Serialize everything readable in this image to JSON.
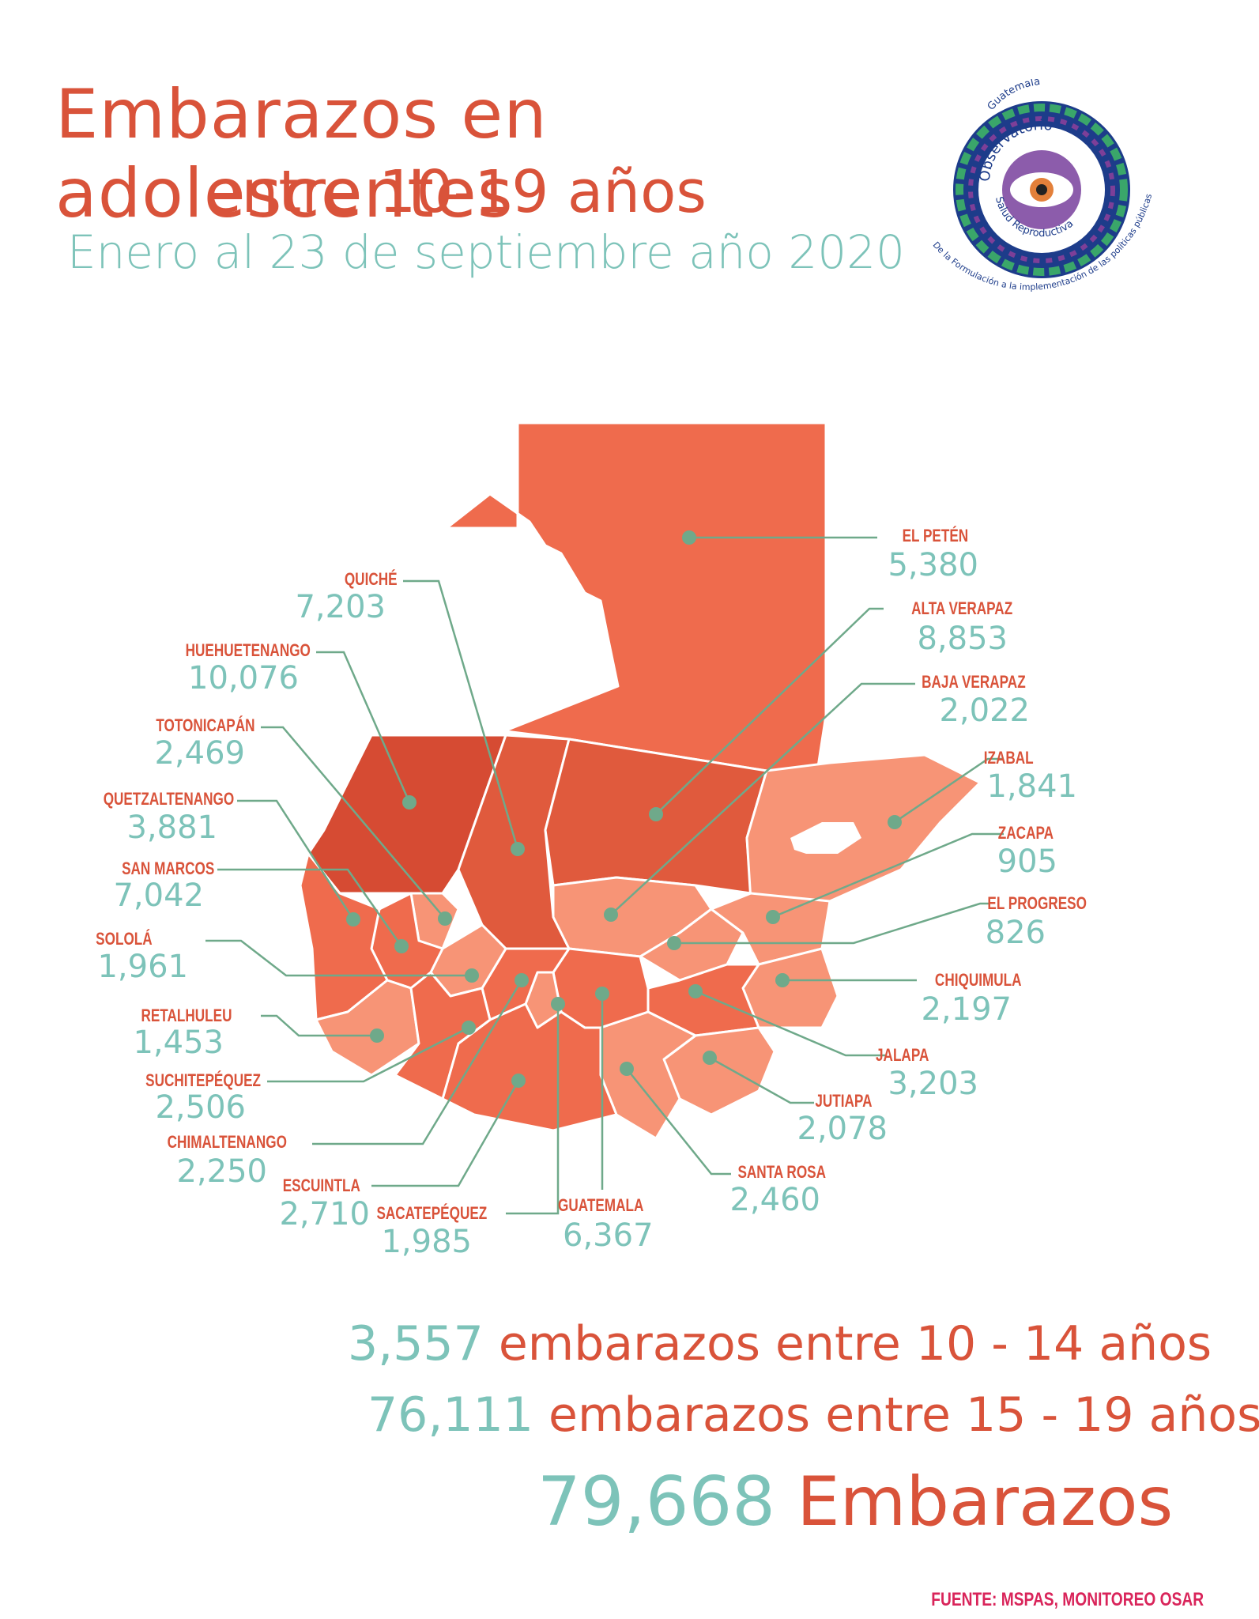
{
  "title": {
    "line1": "Embarazos en adolescentes",
    "line2": "entre 10-19 años",
    "subtitle": "Enero al 23 de septiembre año 2020"
  },
  "logo": {
    "top_text": "Guatemala",
    "ring_text_1": "Observatorio",
    "ring_text_2": "Salud Reproductiva",
    "bottom_text": "De la Formulación a la implementación de las políticas públicas"
  },
  "colors": {
    "accent": "#d9533a",
    "value": "#7dc3b9",
    "leader": "#6fa98a",
    "region_dark": "#d64b33",
    "region_mid": "#ef6b4d",
    "region_light": "#f79476",
    "source": "#d9245a"
  },
  "departments": [
    {
      "name": "EL PETÉN",
      "value": "5,380"
    },
    {
      "name": "ALTA VERAPAZ",
      "value": "8,853"
    },
    {
      "name": "BAJA VERAPAZ",
      "value": "2,022"
    },
    {
      "name": "IZABAL",
      "value": "1,841"
    },
    {
      "name": "ZACAPA",
      "value": "905"
    },
    {
      "name": "EL PROGRESO",
      "value": "826"
    },
    {
      "name": "CHIQUIMULA",
      "value": "2,197"
    },
    {
      "name": "JALAPA",
      "value": "3,203"
    },
    {
      "name": "JUTIAPA",
      "value": "2,078"
    },
    {
      "name": "SANTA ROSA",
      "value": "2,460"
    },
    {
      "name": "GUATEMALA",
      "value": "6,367"
    },
    {
      "name": "SACATEPÉQUEZ",
      "value": "1,985"
    },
    {
      "name": "ESCUINTLA",
      "value": "2,710"
    },
    {
      "name": "CHIMALTENANGO",
      "value": "2,250"
    },
    {
      "name": "SUCHITEPÉQUEZ",
      "value": "2,506"
    },
    {
      "name": "RETALHULEU",
      "value": "1,453"
    },
    {
      "name": "SOLOLÁ",
      "value": "1,961"
    },
    {
      "name": "SAN MARCOS",
      "value": "7,042"
    },
    {
      "name": "QUETZALTENANGO",
      "value": "3,881"
    },
    {
      "name": "TOTONICAPÁN",
      "value": "2,469"
    },
    {
      "name": "HUEHUETENANGO",
      "value": "10,076"
    },
    {
      "name": "QUICHÉ",
      "value": "7,203"
    }
  ],
  "summary": {
    "row1_num": "3,557",
    "row1_text": "embarazos entre 10 - 14 años",
    "row2_num": "76,111",
    "row2_text": "embarazos entre 15 - 19 años",
    "total_num": "79,668",
    "total_text": "Embarazos"
  },
  "source": "FUENTE: MSPAS, MONITOREO OSAR"
}
